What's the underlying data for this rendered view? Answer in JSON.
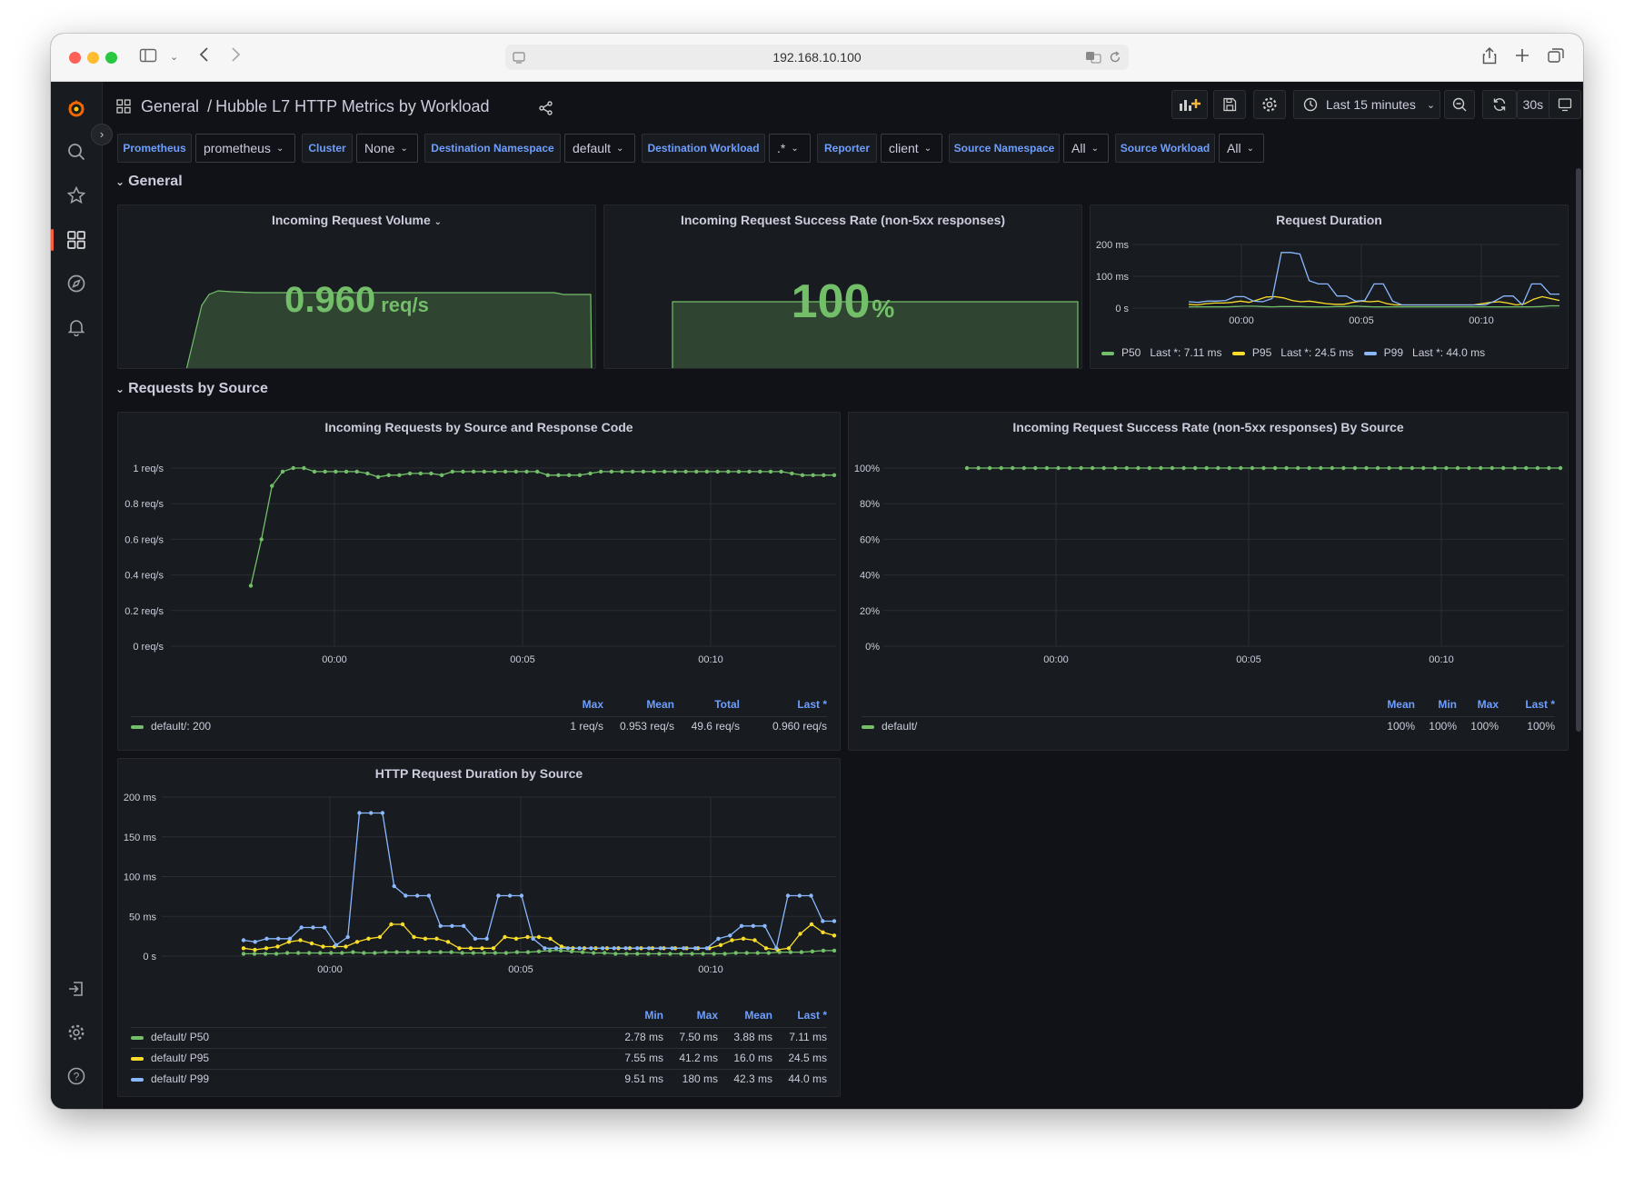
{
  "browser": {
    "url": "192.168.10.100"
  },
  "header": {
    "folder": "General",
    "separator": "/",
    "dashboard_title": "Hubble L7 HTTP Metrics by Workload",
    "time_range": "Last 15 minutes",
    "refresh_interval": "30s"
  },
  "variables": [
    {
      "label": "Prometheus",
      "value": "prometheus"
    },
    {
      "label": "Cluster",
      "value": "None"
    },
    {
      "label": "Destination Namespace",
      "value": "default"
    },
    {
      "label": "Destination Workload",
      "value": ".*"
    },
    {
      "label": "Reporter",
      "value": "client"
    },
    {
      "label": "Source Namespace",
      "value": "All"
    },
    {
      "label": "Source Workload",
      "value": "All"
    }
  ],
  "rows": {
    "general": "General",
    "requests_by_source": "Requests by Source"
  },
  "colors": {
    "green": "#73bf69",
    "yellow": "#fade2a",
    "blue": "#8ab8ff",
    "accent": "#6e9fff",
    "grafana_orange": "#f46800"
  },
  "panels": {
    "volume": {
      "title": "Incoming Request Volume",
      "value": "0.960",
      "unit": "req/s"
    },
    "success": {
      "title": "Incoming Request Success Rate (non-5xx responses)",
      "value": "100",
      "unit": "%"
    },
    "duration": {
      "title": "Request Duration",
      "legend": [
        {
          "name": "P50",
          "last_label": "Last *:",
          "last": "7.11 ms"
        },
        {
          "name": "P95",
          "last_label": "Last *:",
          "last": "24.5 ms"
        },
        {
          "name": "P99",
          "last_label": "Last *:",
          "last": "44.0 ms"
        }
      ]
    },
    "req_by_source": {
      "title": "Incoming Requests by Source and Response Code",
      "legend_headers": [
        "Max",
        "Mean",
        "Total",
        "Last *"
      ],
      "legend_rows": [
        {
          "name": "default/: 200",
          "values": [
            "1 req/s",
            "0.953 req/s",
            "49.6 req/s",
            "0.960 req/s"
          ]
        }
      ]
    },
    "success_by_source": {
      "title": "Incoming Request Success Rate (non-5xx responses) By Source",
      "legend_headers": [
        "Mean",
        "Min",
        "Max",
        "Last *"
      ],
      "legend_rows": [
        {
          "name": "default/",
          "values": [
            "100%",
            "100%",
            "100%",
            "100%"
          ]
        }
      ]
    },
    "duration_by_source": {
      "title": "HTTP Request Duration by Source",
      "legend_headers": [
        "Min",
        "Max",
        "Mean",
        "Last *"
      ],
      "legend_rows": [
        {
          "name": "default/ P50",
          "values": [
            "2.78 ms",
            "7.50 ms",
            "3.88 ms",
            "7.11 ms"
          ]
        },
        {
          "name": "default/ P95",
          "values": [
            "7.55 ms",
            "41.2 ms",
            "16.0 ms",
            "24.5 ms"
          ]
        },
        {
          "name": "default/ P99",
          "values": [
            "9.51 ms",
            "180 ms",
            "42.3 ms",
            "44.0 ms"
          ]
        }
      ]
    }
  },
  "chart_data": [
    {
      "type": "line",
      "title": "Request Duration",
      "x_ticks": [
        "00:00",
        "00:05",
        "00:10"
      ],
      "y_ticks": [
        "200 ms",
        "100 ms",
        "0 s"
      ],
      "ylim": [
        0,
        200
      ],
      "series": [
        {
          "name": "P50",
          "values": [
            4,
            4,
            4,
            4,
            4,
            5,
            6,
            6,
            5,
            4,
            5,
            5,
            5,
            4,
            4,
            4,
            5,
            5,
            6,
            5,
            4,
            4,
            4,
            4,
            4,
            4,
            4,
            4,
            4,
            4,
            4,
            4,
            4,
            4,
            4,
            4,
            4,
            4,
            5,
            7,
            7
          ]
        },
        {
          "name": "P95",
          "values": [
            12,
            10,
            14,
            16,
            16,
            18,
            22,
            18,
            26,
            35,
            36,
            32,
            24,
            20,
            22,
            18,
            14,
            12,
            12,
            18,
            22,
            20,
            22,
            14,
            10,
            10,
            10,
            10,
            10,
            10,
            10,
            10,
            10,
            10,
            14,
            18,
            20,
            16,
            10,
            14,
            28,
            36,
            30,
            24
          ]
        },
        {
          "name": "P99",
          "values": [
            20,
            18,
            22,
            22,
            24,
            36,
            36,
            22,
            20,
            30,
            175,
            175,
            170,
            86,
            76,
            76,
            38,
            38,
            22,
            24,
            76,
            76,
            22,
            10,
            10,
            10,
            10,
            10,
            10,
            10,
            10,
            10,
            10,
            22,
            38,
            38,
            10,
            76,
            76,
            44,
            44
          ]
        }
      ]
    },
    {
      "type": "line",
      "title": "Incoming Requests by Source and Response Code",
      "x_ticks": [
        "00:00",
        "00:05",
        "00:10"
      ],
      "y_ticks": [
        "1 req/s",
        "0.8 req/s",
        "0.6 req/s",
        "0.4 req/s",
        "0.2 req/s",
        "0 req/s"
      ],
      "ylim": [
        0,
        1
      ],
      "series": [
        {
          "name": "default/: 200",
          "values": [
            0.34,
            0.6,
            0.9,
            0.98,
            1,
            1,
            0.98,
            0.98,
            0.98,
            0.98,
            0.98,
            0.97,
            0.95,
            0.96,
            0.96,
            0.97,
            0.97,
            0.97,
            0.96,
            0.98,
            0.98,
            0.98,
            0.98,
            0.98,
            0.98,
            0.98,
            0.98,
            0.98,
            0.96,
            0.96,
            0.96,
            0.96,
            0.97,
            0.98,
            0.98,
            0.98,
            0.98,
            0.98,
            0.98,
            0.98,
            0.98,
            0.98,
            0.98,
            0.98,
            0.98,
            0.98,
            0.98,
            0.98,
            0.98,
            0.98,
            0.98,
            0.97,
            0.96,
            0.96,
            0.96,
            0.96
          ]
        }
      ]
    },
    {
      "type": "line",
      "title": "Incoming Request Success Rate (non-5xx responses) By Source",
      "x_ticks": [
        "00:00",
        "00:05",
        "00:10"
      ],
      "y_ticks": [
        "100%",
        "80%",
        "60%",
        "40%",
        "20%",
        "0%"
      ],
      "ylim": [
        0,
        100
      ],
      "series": [
        {
          "name": "default/",
          "values": [
            100,
            100,
            100,
            100,
            100,
            100,
            100,
            100,
            100,
            100,
            100,
            100,
            100,
            100,
            100,
            100,
            100,
            100,
            100,
            100,
            100,
            100,
            100,
            100,
            100,
            100,
            100,
            100,
            100,
            100,
            100,
            100,
            100,
            100,
            100,
            100,
            100,
            100,
            100,
            100,
            100,
            100,
            100,
            100,
            100,
            100,
            100,
            100,
            100,
            100,
            100,
            100,
            100
          ]
        }
      ]
    },
    {
      "type": "line",
      "title": "HTTP Request Duration by Source",
      "x_ticks": [
        "00:00",
        "00:05",
        "00:10"
      ],
      "y_ticks": [
        "200 ms",
        "150 ms",
        "100 ms",
        "50 ms",
        "0 s"
      ],
      "ylim": [
        0,
        200
      ],
      "series": [
        {
          "name": "default/ P50",
          "values": [
            3,
            3,
            3,
            3,
            4,
            4,
            4,
            4,
            4,
            4,
            5,
            4,
            4,
            5,
            5,
            5,
            5,
            5,
            5,
            5,
            4,
            4,
            4,
            4,
            4,
            5,
            5,
            6,
            7,
            7,
            6,
            5,
            4,
            4,
            3,
            3,
            3,
            3,
            3,
            3,
            3,
            3,
            3,
            3,
            3,
            4,
            4,
            4,
            4,
            5,
            5,
            5,
            6,
            7,
            7
          ]
        },
        {
          "name": "default/ P95",
          "values": [
            10,
            8,
            10,
            12,
            18,
            20,
            16,
            12,
            12,
            12,
            18,
            22,
            24,
            40,
            40,
            24,
            22,
            22,
            18,
            10,
            10,
            10,
            10,
            24,
            22,
            24,
            24,
            22,
            12,
            10,
            10,
            10,
            10,
            10,
            10,
            10,
            10,
            10,
            10,
            10,
            10,
            10,
            14,
            20,
            22,
            20,
            10,
            8,
            10,
            28,
            40,
            30,
            26
          ]
        },
        {
          "name": "default/ P99",
          "values": [
            20,
            18,
            22,
            22,
            22,
            36,
            36,
            36,
            14,
            24,
            180,
            180,
            180,
            88,
            76,
            76,
            76,
            38,
            38,
            38,
            22,
            22,
            76,
            76,
            76,
            22,
            10,
            10,
            10,
            10,
            10,
            10,
            10,
            10,
            10,
            10,
            10,
            10,
            10,
            10,
            10,
            22,
            26,
            38,
            38,
            38,
            10,
            76,
            76,
            76,
            44,
            44
          ]
        }
      ]
    }
  ]
}
